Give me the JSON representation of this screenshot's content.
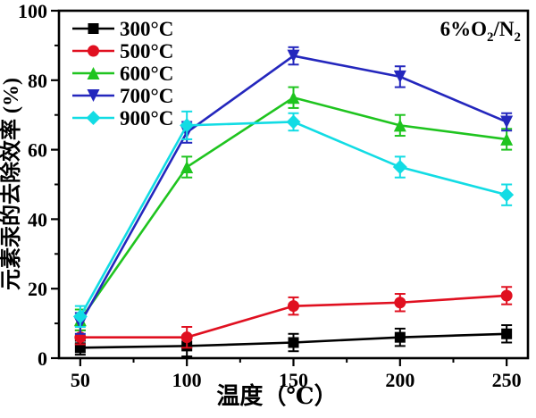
{
  "figure": {
    "background": "#ffffff",
    "frame_color": "#000000"
  },
  "chart_data": {
    "type": "line",
    "title": "",
    "xlabel": "温度（℃）",
    "ylabel": "元素汞的去除效率 (%)",
    "annotation": "6%O2/N2",
    "annotation_segments": [
      {
        "text": "6%O",
        "sub": false
      },
      {
        "text": "2",
        "sub": true
      },
      {
        "text": "/N",
        "sub": false
      },
      {
        "text": "2",
        "sub": true
      }
    ],
    "xlim": [
      40,
      260
    ],
    "ylim": [
      0,
      100
    ],
    "x": [
      50,
      100,
      150,
      200,
      250
    ],
    "x_major_ticks": [
      50,
      100,
      150,
      200,
      250
    ],
    "x_minor_ticks": [
      75,
      125,
      175,
      225
    ],
    "y_major_ticks": [
      0,
      20,
      40,
      60,
      80,
      100
    ],
    "y_minor_ticks": [
      10,
      30,
      50,
      70,
      90
    ],
    "grid": false,
    "legend_position": "top-left-inside",
    "series": [
      {
        "name": "300°C",
        "marker": "square",
        "color": "#000000",
        "values": [
          3,
          3.5,
          4.5,
          6,
          7
        ],
        "errors": [
          2,
          3,
          2.5,
          2.5,
          2.5
        ]
      },
      {
        "name": "500°C",
        "marker": "circle",
        "color": "#e01020",
        "values": [
          6,
          6,
          15,
          16,
          18
        ],
        "errors": [
          2,
          3,
          2.5,
          2.5,
          2.5
        ]
      },
      {
        "name": "600°C",
        "marker": "triangle-up",
        "color": "#1fc41f",
        "values": [
          11,
          55,
          75,
          67,
          63
        ],
        "errors": [
          3,
          3,
          3,
          3,
          3
        ]
      },
      {
        "name": "700°C",
        "marker": "triangle-down",
        "color": "#2427bd",
        "values": [
          10,
          65,
          87,
          81,
          68
        ],
        "errors": [
          3,
          3,
          2.5,
          3,
          2.5
        ]
      },
      {
        "name": "900°C",
        "marker": "diamond",
        "color": "#12dce4",
        "values": [
          12,
          67,
          68,
          55,
          47
        ],
        "errors": [
          3,
          4,
          2.5,
          3,
          3
        ]
      }
    ]
  }
}
